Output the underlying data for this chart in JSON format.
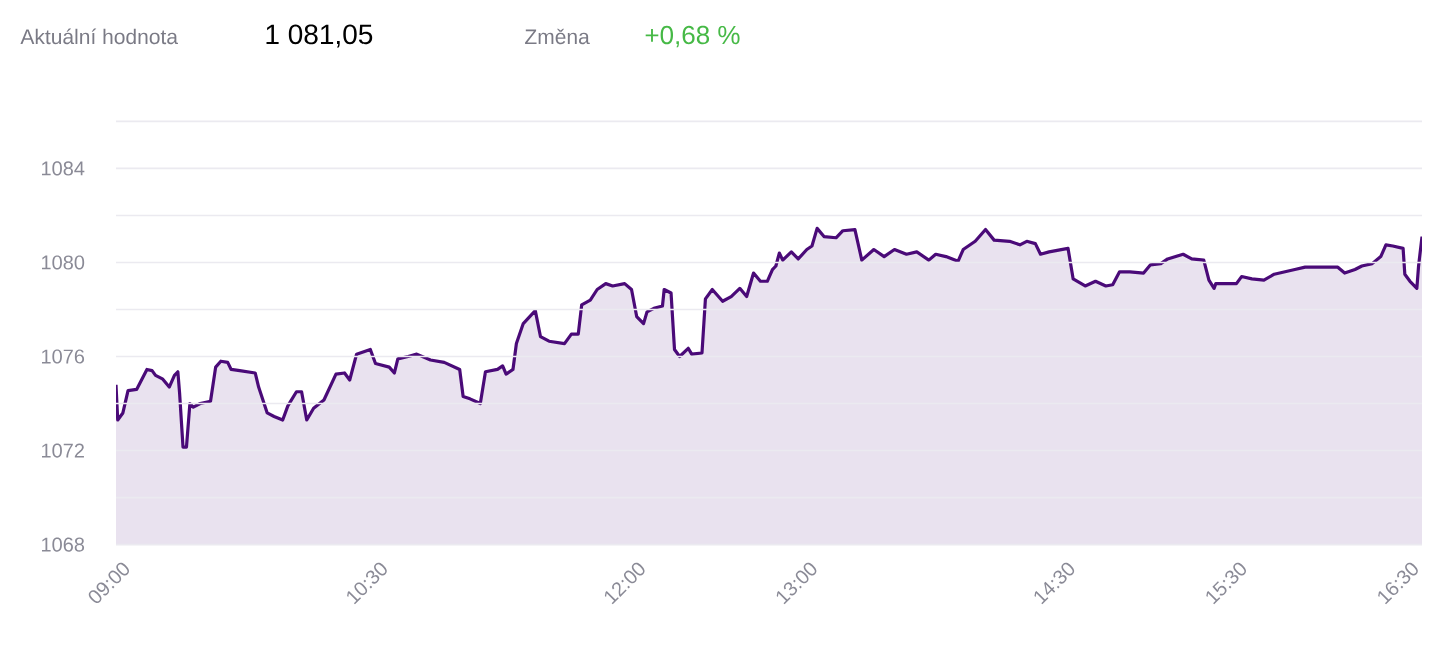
{
  "chart_data": {
    "type": "area",
    "annotations": [
      "Aktuální hodnota",
      "1 081,05",
      "Změna",
      "+0,68 %"
    ],
    "x": [
      9.0,
      9.01,
      9.04,
      9.07,
      9.12,
      9.18,
      9.21,
      9.23,
      9.27,
      9.31,
      9.34,
      9.36,
      9.37,
      9.39,
      9.41,
      9.43,
      9.45,
      9.49,
      9.55,
      9.58,
      9.61,
      9.65,
      9.67,
      9.72,
      9.81,
      9.83,
      9.88,
      9.92,
      9.97,
      10.0,
      10.05,
      10.08,
      10.11,
      10.15,
      10.21,
      10.28,
      10.33,
      10.36,
      10.4,
      10.48,
      10.51,
      10.59,
      10.62,
      10.64,
      10.7,
      10.75,
      10.83,
      10.91,
      11.0,
      11.02,
      11.06,
      11.12,
      11.15,
      11.22,
      11.25,
      11.27,
      11.31,
      11.33,
      11.37,
      11.44,
      11.47,
      11.52,
      11.61,
      11.65,
      11.69,
      11.71,
      11.76,
      11.8,
      11.85,
      11.89,
      11.96,
      12.0,
      12.03,
      12.07,
      12.09,
      12.13,
      12.18,
      12.19,
      12.23,
      12.25,
      12.28,
      12.33,
      12.35,
      12.41,
      12.43,
      12.47,
      12.53,
      12.58,
      12.63,
      12.67,
      12.71,
      12.75,
      12.79,
      12.82,
      12.84,
      12.86,
      12.88,
      12.93,
      12.97,
      13.02,
      13.05,
      13.08,
      13.12,
      13.19,
      13.23,
      13.3,
      13.34,
      13.41,
      13.47,
      13.53,
      13.6,
      13.66,
      13.73,
      13.77,
      13.83,
      13.9,
      13.93,
      14.0,
      14.06,
      14.11,
      14.2,
      14.26,
      14.3,
      14.35,
      14.38,
      14.43,
      14.54,
      14.57,
      14.64,
      14.7,
      14.76,
      14.8,
      14.84,
      14.9,
      14.98,
      15.02,
      15.08,
      15.12,
      15.21,
      15.26,
      15.33,
      15.36,
      15.39,
      15.4,
      15.52,
      15.55,
      15.61,
      15.68,
      15.74,
      15.86,
      15.92,
      16.11,
      16.15,
      16.21,
      16.25,
      16.31,
      16.36,
      16.39,
      16.43,
      16.49,
      16.5,
      16.53,
      16.57,
      16.58,
      16.6
    ],
    "series": [
      {
        "color": "#4a0a78",
        "values": [
          1074.8,
          1073.3,
          1073.6,
          1074.55,
          1074.6,
          1075.45,
          1075.4,
          1075.2,
          1075.05,
          1074.7,
          1075.2,
          1075.35,
          1074.45,
          1072.15,
          1072.15,
          1074.0,
          1073.85,
          1074.0,
          1074.1,
          1075.55,
          1075.8,
          1075.75,
          1075.45,
          1075.4,
          1075.3,
          1074.7,
          1073.6,
          1073.45,
          1073.3,
          1073.9,
          1074.5,
          1074.5,
          1073.3,
          1073.8,
          1074.15,
          1075.25,
          1075.3,
          1075.0,
          1076.1,
          1076.3,
          1075.7,
          1075.55,
          1075.3,
          1075.9,
          1076.0,
          1076.1,
          1075.85,
          1075.75,
          1075.45,
          1074.3,
          1074.2,
          1074.0,
          1075.35,
          1075.45,
          1075.6,
          1075.25,
          1075.45,
          1076.55,
          1077.4,
          1077.95,
          1076.85,
          1076.65,
          1076.55,
          1076.95,
          1076.95,
          1078.2,
          1078.4,
          1078.85,
          1079.1,
          1079.0,
          1079.1,
          1078.85,
          1077.7,
          1077.4,
          1077.9,
          1078.05,
          1078.15,
          1078.85,
          1078.7,
          1076.3,
          1076.0,
          1076.35,
          1076.1,
          1076.15,
          1078.45,
          1078.85,
          1078.35,
          1078.55,
          1078.9,
          1078.55,
          1079.55,
          1079.2,
          1079.2,
          1079.7,
          1079.85,
          1080.4,
          1080.1,
          1080.45,
          1080.15,
          1080.55,
          1080.7,
          1081.45,
          1081.1,
          1081.05,
          1081.35,
          1081.4,
          1080.1,
          1080.55,
          1080.25,
          1080.55,
          1080.35,
          1080.45,
          1080.1,
          1080.35,
          1080.25,
          1080.05,
          1080.55,
          1080.9,
          1081.4,
          1080.95,
          1080.9,
          1080.75,
          1080.9,
          1080.8,
          1080.35,
          1080.45,
          1080.6,
          1079.3,
          1079.0,
          1079.2,
          1079.0,
          1079.05,
          1079.6,
          1079.6,
          1079.55,
          1079.9,
          1079.95,
          1080.15,
          1080.35,
          1080.15,
          1080.1,
          1079.25,
          1078.9,
          1079.1,
          1079.1,
          1079.4,
          1079.3,
          1079.25,
          1079.5,
          1079.7,
          1079.8,
          1079.8,
          1079.55,
          1079.7,
          1079.85,
          1079.95,
          1080.25,
          1080.75,
          1080.7,
          1080.6,
          1079.5,
          1079.2,
          1078.9,
          1079.85,
          1081.1
        ]
      }
    ],
    "xlim": [
      9,
      16.6
    ],
    "xticks": [
      {
        "value": 9,
        "label": "09:00"
      },
      {
        "value": 10.5,
        "label": "10:30"
      },
      {
        "value": 12,
        "label": "12:00"
      },
      {
        "value": 13,
        "label": "13:00"
      },
      {
        "value": 14.5,
        "label": "14:30"
      },
      {
        "value": 15.5,
        "label": "15:30"
      },
      {
        "value": 16.5,
        "label": "16:30"
      }
    ],
    "ylim": [
      1068,
      1086
    ],
    "yticks": [
      1068,
      {
        "value": 1070,
        "label": null
      },
      1072,
      {
        "value": 1074,
        "label": null
      },
      1076,
      {
        "value": 1078,
        "label": null
      },
      1080,
      {
        "value": 1082,
        "label": null
      },
      1084,
      {
        "value": 1086,
        "label": null
      }
    ],
    "grid": "y",
    "legend": false,
    "marker": "none",
    "line_style": "solid"
  }
}
